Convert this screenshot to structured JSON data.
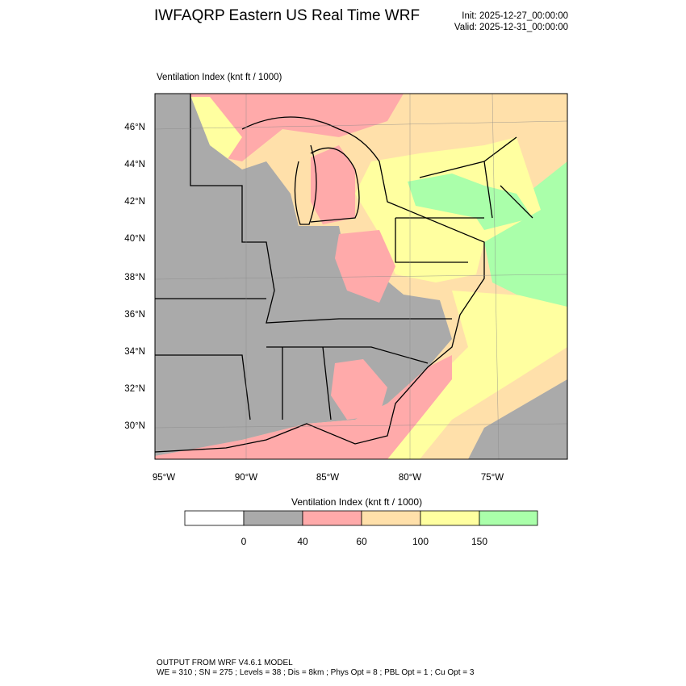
{
  "header": {
    "title": "IWFAQRP Eastern US Real Time WRF",
    "init": "Init: 2025-12-27_00:00:00",
    "valid": "Valid: 2025-12-31_00:00:00"
  },
  "map": {
    "field_label": "Ventilation Index   (knt ft / 1000)",
    "lat_labels": [
      "46°N",
      "44°N",
      "42°N",
      "40°N",
      "38°N",
      "36°N",
      "34°N",
      "32°N",
      "30°N"
    ],
    "lon_labels": [
      "95°W",
      "90°W",
      "85°W",
      "80°W",
      "75°W"
    ]
  },
  "colorbar": {
    "title": "Ventilation Index  (knt ft / 1000)",
    "levels": [
      "0",
      "40",
      "60",
      "100",
      "150"
    ],
    "colors": [
      "#ffffff",
      "#aaaaaa",
      "#ffaaaa",
      "#ffe0aa",
      "#ffffa0",
      "#aaffaa"
    ]
  },
  "footer": {
    "line1": "OUTPUT FROM WRF V4.6.1 MODEL",
    "line2": "WE = 310 ; SN = 275 ; Levels = 38 ; Dis = 8km ; Phys Opt = 8 ; PBL Opt = 1 ; Cu Opt = 3"
  }
}
